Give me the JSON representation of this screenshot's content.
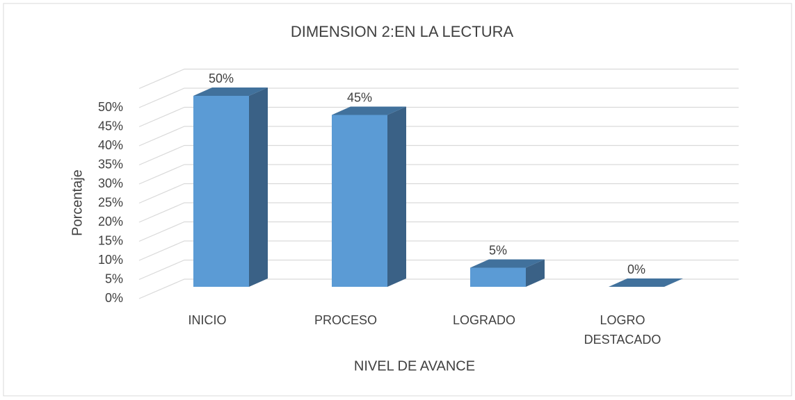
{
  "chart_data": {
    "type": "bar3d",
    "title": "DIMENSION 2:EN LA LECTURA",
    "x_label": "NIVEL DE AVANCE",
    "y_label": "Porcentaje",
    "categories": [
      "INICIO",
      "PROCESO",
      "LOGRADO",
      "LOGRO DESTACADO"
    ],
    "values": [
      50,
      45,
      5,
      0
    ],
    "value_labels": [
      "50%",
      "45%",
      "5%",
      "0%"
    ],
    "color": "#5b9bd5",
    "ylim": [
      0,
      55
    ],
    "yticks": [
      {
        "value": 0,
        "label": "0%"
      },
      {
        "value": 5,
        "label": "5%"
      },
      {
        "value": 10,
        "label": "10%"
      },
      {
        "value": 15,
        "label": "15%"
      },
      {
        "value": 20,
        "label": "20%"
      },
      {
        "value": 25,
        "label": "25%"
      },
      {
        "value": 30,
        "label": "30%"
      },
      {
        "value": 35,
        "label": "35%"
      },
      {
        "value": 40,
        "label": "40%"
      },
      {
        "value": 45,
        "label": "45%"
      },
      {
        "value": 50,
        "label": "50%"
      }
    ],
    "grid": true
  }
}
